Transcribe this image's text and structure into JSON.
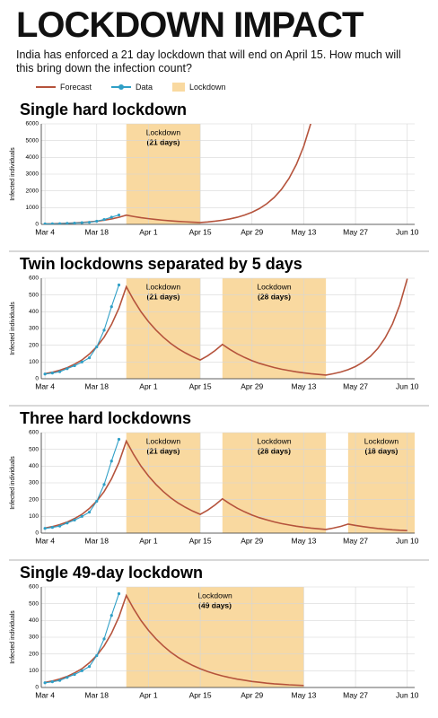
{
  "title": "LOCKDOWN IMPACT",
  "subtitle": "India has enforced a 21 day lockdown that will end on April 15. How much will this bring down the infection count?",
  "legend": [
    {
      "name": "Forecast",
      "color": "#b5533c"
    },
    {
      "name": "Data",
      "color": "#2f9fc6"
    },
    {
      "name": "Lockdown",
      "color": "#f9d9a0"
    }
  ],
  "chart_data": [
    {
      "type": "line",
      "title": "Single hard lockdown",
      "ylabel": "Infected individuals",
      "x": [
        0,
        2,
        4,
        6,
        8,
        10,
        12,
        14,
        16,
        18,
        20,
        22,
        24,
        26,
        28,
        30,
        32,
        34,
        36,
        38,
        40,
        42,
        44,
        46,
        48,
        50,
        52,
        54,
        56,
        58,
        60,
        62,
        64,
        66,
        68,
        70,
        72,
        74,
        76,
        78,
        80,
        82,
        84,
        86,
        88,
        90,
        92,
        94,
        96,
        98
      ],
      "series": [
        {
          "name": "Forecast",
          "color": "#b5533c",
          "values": [
            30,
            39,
            51,
            66,
            87,
            112,
            147,
            191,
            248,
            324,
            421,
            549,
            469,
            399,
            341,
            291,
            248,
            211,
            180,
            154,
            131,
            112,
            146,
            191,
            248,
            325,
            424,
            553,
            722,
            943,
            1231,
            1607,
            2098,
            2739,
            3575,
            4667,
            6093,
            null,
            null,
            null,
            null,
            null,
            null,
            null,
            null,
            null,
            null,
            null,
            null,
            null
          ]
        },
        {
          "name": "Data",
          "color": "#2f9fc6",
          "values": [
            28,
            34,
            42,
            60,
            78,
            100,
            125,
            190,
            290,
            430,
            560,
            null,
            null,
            null,
            null,
            null,
            null,
            null,
            null,
            null,
            null,
            null,
            null,
            null,
            null,
            null,
            null,
            null,
            null,
            null,
            null,
            null,
            null,
            null,
            null,
            null,
            null,
            null,
            null,
            null,
            null,
            null,
            null,
            null,
            null,
            null,
            null,
            null,
            null,
            null
          ]
        }
      ],
      "lockdowns": [
        {
          "label": "Lockdown",
          "duration": "(21 days)",
          "start": 22,
          "end": 42
        }
      ],
      "band_color": "#f9d9a0",
      "xlim": [
        -1,
        100
      ],
      "xticks": [
        {
          "value": 0,
          "label": "Mar 4"
        },
        {
          "value": 14,
          "label": "Mar 18"
        },
        {
          "value": 28,
          "label": "Apr 1"
        },
        {
          "value": 42,
          "label": "Apr 15"
        },
        {
          "value": 56,
          "label": "Apr 29"
        },
        {
          "value": 70,
          "label": "May 13"
        },
        {
          "value": 84,
          "label": "May 27"
        },
        {
          "value": 98,
          "label": "Jun 10"
        }
      ],
      "ylim": [
        0,
        6000
      ],
      "yticks": [
        0,
        1000,
        2000,
        3000,
        4000,
        5000,
        6000
      ],
      "grid": true
    },
    {
      "type": "line",
      "title": "Twin lockdowns separated by 5 days",
      "ylabel": "Infected individuals",
      "x": [
        0,
        2,
        4,
        6,
        8,
        10,
        12,
        14,
        16,
        18,
        20,
        22,
        24,
        26,
        28,
        30,
        32,
        34,
        36,
        38,
        40,
        42,
        44,
        46,
        48,
        50,
        52,
        54,
        56,
        58,
        60,
        62,
        64,
        66,
        68,
        70,
        72,
        74,
        76,
        78,
        80,
        82,
        84,
        86,
        88,
        90,
        92,
        94,
        96,
        98
      ],
      "series": [
        {
          "name": "Forecast",
          "color": "#b5533c",
          "values": [
            30,
            39,
            51,
            66,
            87,
            112,
            147,
            191,
            248,
            324,
            421,
            549,
            469,
            399,
            341,
            291,
            248,
            211,
            180,
            154,
            131,
            112,
            137,
            168,
            205,
            175,
            149,
            127,
            108,
            92,
            79,
            67,
            57,
            49,
            41,
            35,
            30,
            26,
            22,
            30,
            40,
            54,
            73,
            99,
            133,
            180,
            243,
            327,
            442,
            597
          ]
        },
        {
          "name": "Data",
          "color": "#2f9fc6",
          "values": [
            28,
            34,
            42,
            60,
            78,
            100,
            125,
            190,
            290,
            430,
            560,
            null,
            null,
            null,
            null,
            null,
            null,
            null,
            null,
            null,
            null,
            null,
            null,
            null,
            null,
            null,
            null,
            null,
            null,
            null,
            null,
            null,
            null,
            null,
            null,
            null,
            null,
            null,
            null,
            null,
            null,
            null,
            null,
            null,
            null,
            null,
            null,
            null,
            null,
            null
          ]
        }
      ],
      "lockdowns": [
        {
          "label": "Lockdown",
          "duration": "(21 days)",
          "start": 22,
          "end": 42
        },
        {
          "label": "Lockdown",
          "duration": "(28 days)",
          "start": 48,
          "end": 76
        }
      ],
      "band_color": "#f9d9a0",
      "xlim": [
        -1,
        100
      ],
      "xticks": [
        {
          "value": 0,
          "label": "Mar 4"
        },
        {
          "value": 14,
          "label": "Mar 18"
        },
        {
          "value": 28,
          "label": "Apr 1"
        },
        {
          "value": 42,
          "label": "Apr 15"
        },
        {
          "value": 56,
          "label": "Apr 29"
        },
        {
          "value": 70,
          "label": "May 13"
        },
        {
          "value": 84,
          "label": "May 27"
        },
        {
          "value": 98,
          "label": "Jun 10"
        }
      ],
      "ylim": [
        0,
        600
      ],
      "yticks": [
        0,
        100,
        200,
        300,
        400,
        500,
        600
      ],
      "grid": true
    },
    {
      "type": "line",
      "title": "Three hard lockdowns",
      "ylabel": "Infected individuals",
      "x": [
        0,
        2,
        4,
        6,
        8,
        10,
        12,
        14,
        16,
        18,
        20,
        22,
        24,
        26,
        28,
        30,
        32,
        34,
        36,
        38,
        40,
        42,
        44,
        46,
        48,
        50,
        52,
        54,
        56,
        58,
        60,
        62,
        64,
        66,
        68,
        70,
        72,
        74,
        76,
        78,
        80,
        82,
        84,
        86,
        88,
        90,
        92,
        94,
        96,
        98
      ],
      "series": [
        {
          "name": "Forecast",
          "color": "#b5533c",
          "values": [
            30,
            39,
            51,
            66,
            87,
            112,
            147,
            191,
            248,
            324,
            421,
            549,
            469,
            399,
            341,
            291,
            248,
            211,
            180,
            154,
            131,
            112,
            137,
            168,
            205,
            175,
            149,
            127,
            108,
            92,
            79,
            67,
            57,
            49,
            41,
            35,
            30,
            26,
            22,
            30,
            40,
            54,
            46,
            39,
            33,
            28,
            24,
            20,
            17,
            15
          ]
        },
        {
          "name": "Data",
          "color": "#2f9fc6",
          "values": [
            28,
            34,
            42,
            60,
            78,
            100,
            125,
            190,
            290,
            430,
            560,
            null,
            null,
            null,
            null,
            null,
            null,
            null,
            null,
            null,
            null,
            null,
            null,
            null,
            null,
            null,
            null,
            null,
            null,
            null,
            null,
            null,
            null,
            null,
            null,
            null,
            null,
            null,
            null,
            null,
            null,
            null,
            null,
            null,
            null,
            null,
            null,
            null,
            null,
            null
          ]
        }
      ],
      "lockdowns": [
        {
          "label": "Lockdown",
          "duration": "(21 days)",
          "start": 22,
          "end": 42
        },
        {
          "label": "Lockdown",
          "duration": "(28 days)",
          "start": 48,
          "end": 76
        },
        {
          "label": "Lockdown",
          "duration": "(18 days)",
          "start": 82,
          "end": 100
        }
      ],
      "band_color": "#f9d9a0",
      "xlim": [
        -1,
        100
      ],
      "xticks": [
        {
          "value": 0,
          "label": "Mar 4"
        },
        {
          "value": 14,
          "label": "Mar 18"
        },
        {
          "value": 28,
          "label": "Apr 1"
        },
        {
          "value": 42,
          "label": "Apr 15"
        },
        {
          "value": 56,
          "label": "Apr 29"
        },
        {
          "value": 70,
          "label": "May 13"
        },
        {
          "value": 84,
          "label": "May 27"
        },
        {
          "value": 98,
          "label": "Jun 10"
        }
      ],
      "ylim": [
        0,
        600
      ],
      "yticks": [
        0,
        100,
        200,
        300,
        400,
        500,
        600
      ],
      "grid": true
    },
    {
      "type": "line",
      "title": "Single 49-day lockdown",
      "ylabel": "Infected individuals",
      "x": [
        0,
        2,
        4,
        6,
        8,
        10,
        12,
        14,
        16,
        18,
        20,
        22,
        24,
        26,
        28,
        30,
        32,
        34,
        36,
        38,
        40,
        42,
        44,
        46,
        48,
        50,
        52,
        54,
        56,
        58,
        60,
        62,
        64,
        66,
        68,
        70,
        72,
        74,
        76,
        78,
        80,
        82,
        84,
        86,
        88,
        90,
        92,
        94,
        96,
        98
      ],
      "series": [
        {
          "name": "Forecast",
          "color": "#b5533c",
          "values": [
            30,
            39,
            51,
            66,
            87,
            112,
            147,
            191,
            248,
            324,
            421,
            549,
            469,
            399,
            341,
            291,
            248,
            211,
            180,
            154,
            131,
            112,
            95,
            81,
            69,
            59,
            50,
            43,
            36,
            31,
            26,
            22,
            19,
            16,
            14,
            12,
            null,
            null,
            null,
            null,
            null,
            null,
            null,
            null,
            null,
            null,
            null,
            null,
            null,
            null
          ]
        },
        {
          "name": "Data",
          "color": "#2f9fc6",
          "values": [
            28,
            34,
            42,
            60,
            78,
            100,
            125,
            190,
            290,
            430,
            560,
            null,
            null,
            null,
            null,
            null,
            null,
            null,
            null,
            null,
            null,
            null,
            null,
            null,
            null,
            null,
            null,
            null,
            null,
            null,
            null,
            null,
            null,
            null,
            null,
            null,
            null,
            null,
            null,
            null,
            null,
            null,
            null,
            null,
            null,
            null,
            null,
            null,
            null,
            null
          ]
        }
      ],
      "lockdowns": [
        {
          "label": "Lockdown",
          "duration": "(49 days)",
          "start": 22,
          "end": 70
        }
      ],
      "band_color": "#f9d9a0",
      "xlim": [
        -1,
        100
      ],
      "xticks": [
        {
          "value": 0,
          "label": "Mar 4"
        },
        {
          "value": 14,
          "label": "Mar 18"
        },
        {
          "value": 28,
          "label": "Apr 1"
        },
        {
          "value": 42,
          "label": "Apr 15"
        },
        {
          "value": 56,
          "label": "Apr 29"
        },
        {
          "value": 70,
          "label": "May 13"
        },
        {
          "value": 84,
          "label": "May 27"
        },
        {
          "value": 98,
          "label": "Jun 10"
        }
      ],
      "ylim": [
        0,
        600
      ],
      "yticks": [
        0,
        100,
        200,
        300,
        400,
        500,
        600
      ],
      "grid": true
    }
  ]
}
